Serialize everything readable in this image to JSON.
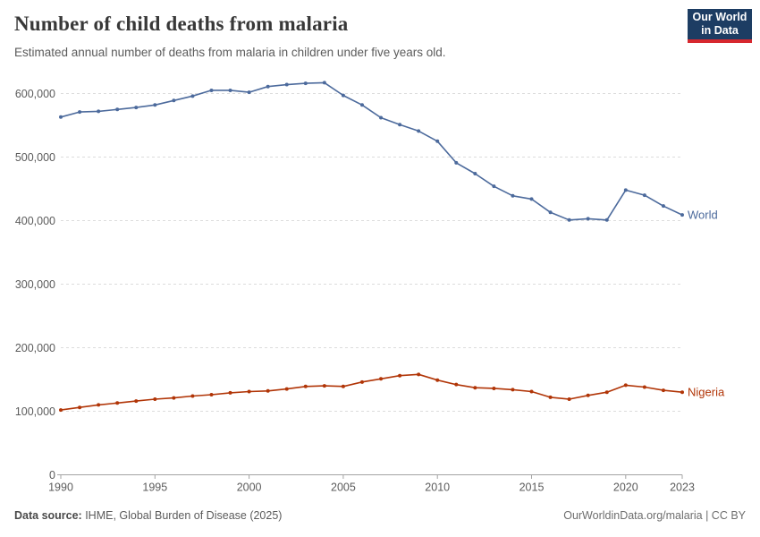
{
  "header": {
    "title": "Number of child deaths from malaria",
    "subtitle": "Estimated annual number of deaths from malaria in children under five years old.",
    "logo": {
      "line1": "Our World",
      "line2": "in Data",
      "bg_color": "#1d3d63",
      "accent_color": "#d7282f"
    }
  },
  "chart_data": {
    "type": "line",
    "title": "Number of child deaths from malaria",
    "xlabel": "",
    "ylabel": "",
    "ylim": [
      0,
      630000
    ],
    "grid": "horizontal dashed",
    "legend_position": "end-of-line labels",
    "years": [
      1990,
      1991,
      1992,
      1993,
      1994,
      1995,
      1996,
      1997,
      1998,
      1999,
      2000,
      2001,
      2002,
      2003,
      2004,
      2005,
      2006,
      2007,
      2008,
      2009,
      2010,
      2011,
      2012,
      2013,
      2014,
      2015,
      2016,
      2017,
      2018,
      2019,
      2020,
      2021,
      2022,
      2023
    ],
    "series": [
      {
        "name": "World",
        "color": "#4C6A9C",
        "values": [
          563000,
          571000,
          572000,
          575000,
          578000,
          582000,
          589000,
          596000,
          605000,
          605000,
          602000,
          611000,
          614000,
          616000,
          617000,
          597000,
          582000,
          562000,
          551000,
          541000,
          525000,
          491000,
          474000,
          454000,
          439000,
          434000,
          413000,
          401000,
          403000,
          401000,
          448000,
          440000,
          423000,
          409000
        ]
      },
      {
        "name": "Nigeria",
        "color": "#B13507",
        "values": [
          102000,
          106000,
          110000,
          113000,
          116000,
          119000,
          121000,
          124000,
          126000,
          129000,
          131000,
          132000,
          135000,
          139000,
          140000,
          139000,
          146000,
          151000,
          156000,
          158000,
          149000,
          142000,
          137000,
          136000,
          134000,
          131000,
          122000,
          119000,
          125000,
          130000,
          141000,
          138000,
          133000,
          130000
        ]
      }
    ],
    "yticks": [
      {
        "value": 600000,
        "label": "600,000"
      },
      {
        "value": 500000,
        "label": "500,000"
      },
      {
        "value": 400000,
        "label": "400,000"
      },
      {
        "value": 300000,
        "label": "300,000"
      },
      {
        "value": 200000,
        "label": "200,000"
      },
      {
        "value": 100000,
        "label": "100,000"
      },
      {
        "value": 0,
        "label": "0"
      }
    ],
    "xticks": [
      {
        "value": 1990,
        "label": "1990"
      },
      {
        "value": 1995,
        "label": "1995"
      },
      {
        "value": 2000,
        "label": "2000"
      },
      {
        "value": 2005,
        "label": "2005"
      },
      {
        "value": 2010,
        "label": "2010"
      },
      {
        "value": 2015,
        "label": "2015"
      },
      {
        "value": 2020,
        "label": "2020"
      },
      {
        "value": 2023,
        "label": "2023"
      }
    ]
  },
  "footer": {
    "source_label": "Data source:",
    "source_value": " IHME, Global Burden of Disease (2025)",
    "right": "OurWorldinData.org/malaria | CC BY"
  }
}
